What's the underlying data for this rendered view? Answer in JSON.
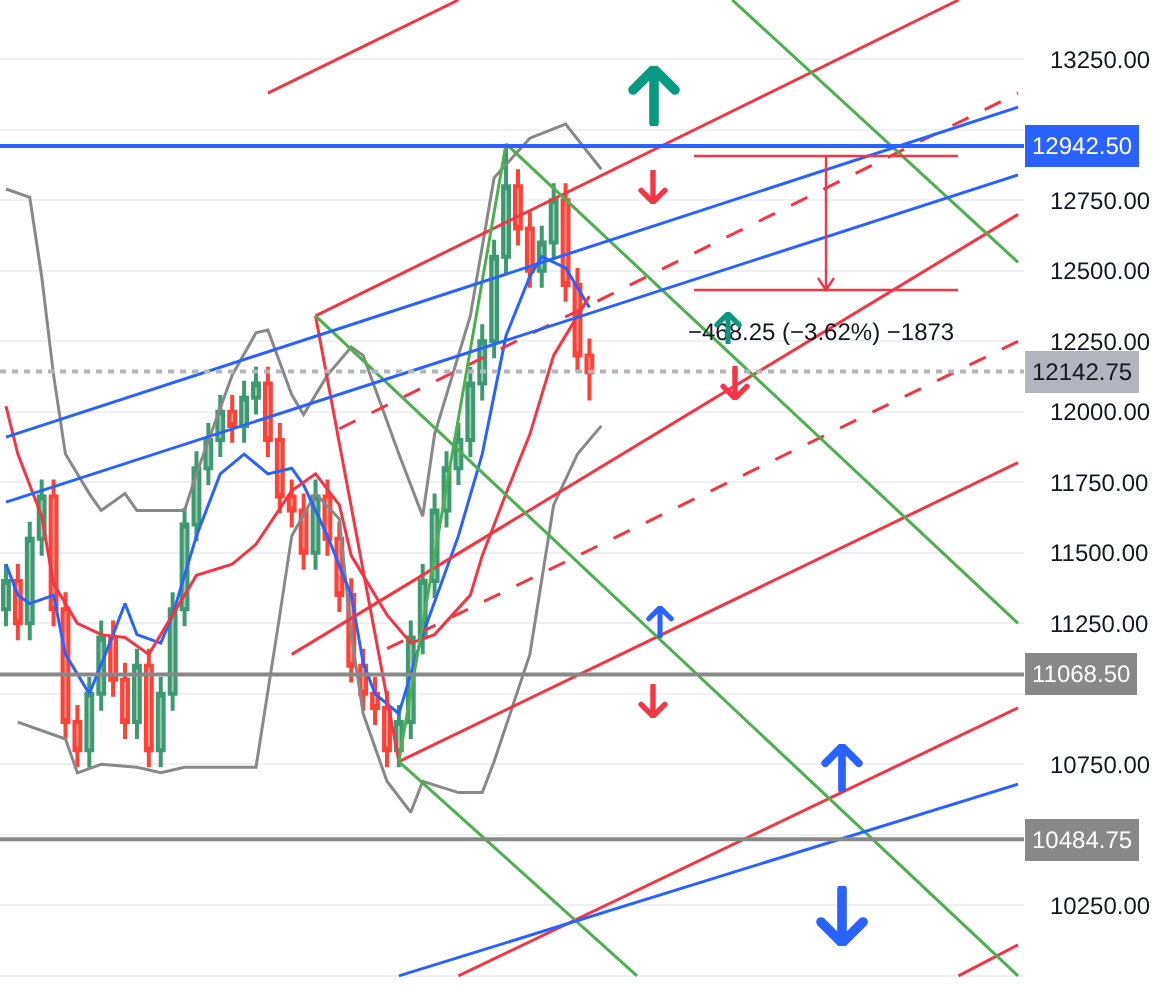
{
  "chart_data": {
    "type": "candlestick",
    "categories": [
      null,
      null,
      null,
      null,
      null,
      null,
      null,
      null,
      null,
      null,
      null,
      null,
      null,
      null,
      null,
      null,
      null,
      null,
      null,
      null,
      null,
      null,
      null,
      null,
      null,
      null,
      null,
      null,
      null,
      null,
      null,
      null,
      null,
      null,
      null,
      null,
      null,
      null,
      null,
      null,
      null,
      null,
      null,
      null,
      null,
      null,
      null,
      null,
      null,
      null,
      null,
      null,
      null,
      null,
      null,
      null,
      null,
      null,
      null,
      null,
      null,
      null,
      null,
      null,
      null,
      null,
      null,
      null,
      null,
      null,
      null,
      null,
      null,
      null,
      null,
      null,
      null,
      null,
      null,
      null,
      null,
      null,
      null,
      null,
      null,
      null
    ],
    "ohlc": [
      [
        11300,
        11460,
        11240,
        11400
      ],
      [
        11400,
        11460,
        11190,
        11250
      ],
      [
        11250,
        11610,
        11190,
        11550
      ],
      [
        11550,
        11760,
        11490,
        11700
      ],
      [
        11700,
        11760,
        11240,
        11300
      ],
      [
        11300,
        11360,
        10840,
        10900
      ],
      [
        10900,
        10960,
        10740,
        10800
      ],
      [
        10800,
        11060,
        10740,
        11000
      ],
      [
        11000,
        11260,
        10940,
        11200
      ],
      [
        11200,
        11260,
        10990,
        11050
      ],
      [
        11050,
        11110,
        10840,
        10900
      ],
      [
        10900,
        11160,
        10840,
        11100
      ],
      [
        11100,
        11160,
        10740,
        10800
      ],
      [
        10800,
        11060,
        10740,
        11000
      ],
      [
        11000,
        11360,
        10940,
        11300
      ],
      [
        11300,
        11660,
        11240,
        11600
      ],
      [
        11600,
        11860,
        11540,
        11800
      ],
      [
        11800,
        11960,
        11740,
        11900
      ],
      [
        11900,
        12060,
        11840,
        12000
      ],
      [
        12000,
        12060,
        11890,
        11950
      ],
      [
        11950,
        12110,
        11890,
        12050
      ],
      [
        12050,
        12160,
        11990,
        12100
      ],
      [
        12100,
        12160,
        11840,
        11900
      ],
      [
        11900,
        11960,
        11640,
        11700
      ],
      [
        11700,
        11760,
        11590,
        11650
      ],
      [
        11650,
        11710,
        11440,
        11500
      ],
      [
        11500,
        11760,
        11440,
        11700
      ],
      [
        11700,
        11760,
        11490,
        11550
      ],
      [
        11550,
        11610,
        11290,
        11350
      ],
      [
        11350,
        11410,
        11040,
        11100
      ],
      [
        11100,
        11160,
        10940,
        11000
      ],
      [
        11000,
        11060,
        10890,
        10950
      ],
      [
        10950,
        11010,
        10740,
        10800
      ],
      [
        10800,
        10960,
        10740,
        10900
      ],
      [
        10900,
        11260,
        10840,
        11200
      ],
      [
        11200,
        11460,
        11140,
        11400
      ],
      [
        11400,
        11710,
        11340,
        11650
      ],
      [
        11650,
        11860,
        11590,
        11800
      ],
      [
        11800,
        11960,
        11740,
        11900
      ],
      [
        11900,
        12160,
        11840,
        12100
      ],
      [
        12100,
        12310,
        12040,
        12250
      ],
      [
        12250,
        12610,
        12190,
        12550
      ],
      [
        12550,
        12940,
        12490,
        12800
      ],
      [
        12800,
        12860,
        12590,
        12650
      ],
      [
        12650,
        12710,
        12440,
        12500
      ],
      [
        12500,
        12660,
        12440,
        12600
      ],
      [
        12600,
        12810,
        12540,
        12750
      ],
      [
        12750,
        12810,
        12390,
        12450
      ],
      [
        12450,
        12510,
        12140,
        12200
      ],
      [
        12200,
        12260,
        12040,
        12140
      ],
      null,
      null,
      null,
      null,
      null,
      null,
      null,
      null,
      null,
      null,
      null,
      null,
      null,
      null,
      null,
      null,
      null,
      null,
      null,
      null,
      null,
      null,
      null,
      null,
      null,
      null,
      null,
      null,
      null,
      null,
      null,
      null,
      null,
      null,
      null,
      null
    ],
    "series": [
      {
        "type": "line",
        "color": "#888888",
        "values": [
          12790,
          null,
          12760,
          12480,
          12130,
          11850,
          null,
          11710,
          11650,
          null,
          11710,
          11650,
          null,
          11650,
          null,
          11650,
          11780,
          null,
          null,
          12130,
          null,
          12280,
          12290,
          null,
          12060,
          11990,
          null,
          12130,
          null,
          12230,
          12200,
          null,
          null,
          11850,
          null,
          11630,
          11920,
          null,
          null,
          12340,
          null,
          12830,
          null,
          null,
          12970,
          null,
          null,
          13020,
          null,
          null,
          12860,
          null,
          null,
          null,
          null,
          null,
          null,
          null,
          null,
          null,
          null,
          null,
          null,
          null,
          null,
          null,
          null,
          null,
          null,
          null,
          null,
          null,
          null,
          null,
          null,
          null,
          null,
          null,
          null,
          null,
          null,
          null,
          null,
          null,
          null,
          null
        ]
      },
      {
        "type": "line",
        "color": "#888888",
        "values": [
          null,
          10900,
          null,
          null,
          null,
          10840,
          10720,
          null,
          10750,
          null,
          null,
          10740,
          null,
          10720,
          null,
          10740,
          null,
          null,
          null,
          10740,
          null,
          10740,
          null,
          11280,
          11560,
          null,
          11710,
          null,
          11620,
          11210,
          10930,
          null,
          10690,
          null,
          10580,
          10690,
          null,
          null,
          10650,
          null,
          10650,
          10760,
          null,
          null,
          11140,
          null,
          11670,
          null,
          11850,
          null,
          11950,
          null,
          null,
          null,
          null,
          null,
          null,
          null,
          null,
          null,
          null,
          null,
          null,
          null,
          null,
          null,
          null,
          null,
          null,
          null,
          null,
          null,
          null,
          null,
          null,
          null,
          null,
          null,
          null,
          null,
          null,
          null,
          null,
          null,
          null,
          null
        ]
      },
      {
        "type": "line",
        "color": "#2962ff",
        "values": [
          11460,
          11350,
          11320,
          null,
          11350,
          11140,
          null,
          11000,
          null,
          11210,
          11320,
          11210,
          null,
          11180,
          11280,
          null,
          11560,
          null,
          11780,
          null,
          11850,
          null,
          11780,
          null,
          11800,
          11740,
          null,
          11560,
          null,
          11350,
          11110,
          11000,
          null,
          10930,
          null,
          11210,
          null,
          null,
          11560,
          null,
          11850,
          null,
          12270,
          null,
          12480,
          12550,
          null,
          12510,
          null,
          12370,
          null,
          null,
          null,
          null,
          null,
          null,
          null,
          null,
          null,
          null,
          null,
          null,
          null,
          null,
          null,
          null,
          null,
          null,
          null,
          null,
          null,
          null,
          null,
          null,
          null,
          null,
          null,
          null,
          null,
          null,
          null,
          null,
          null,
          null,
          null,
          null
        ]
      },
      {
        "type": "line",
        "color": "#f23645",
        "values": [
          12020,
          11850,
          null,
          11630,
          11390,
          null,
          11250,
          null,
          11210,
          null,
          11200,
          null,
          11140,
          null,
          11280,
          null,
          11420,
          null,
          null,
          11460,
          null,
          11530,
          null,
          null,
          11720,
          null,
          11780,
          null,
          11670,
          11490,
          null,
          null,
          11280,
          null,
          11180,
          null,
          11210,
          null,
          null,
          11350,
          11490,
          null,
          11710,
          null,
          11920,
          null,
          12200,
          null,
          null,
          12410,
          null,
          null,
          null,
          null,
          null,
          null,
          null,
          null,
          null,
          null,
          null,
          null,
          null,
          null,
          null,
          null,
          null,
          null,
          null,
          null,
          null,
          null,
          null,
          null,
          null,
          null,
          null,
          null,
          null,
          null,
          null,
          null,
          null,
          null,
          null,
          null
        ]
      },
      {
        "type": "line",
        "color": "#f23645",
        "values": [
          null,
          null,
          null,
          null,
          null,
          null,
          null,
          null,
          null,
          null,
          null,
          null,
          null,
          null,
          null,
          null,
          null,
          null,
          null,
          null,
          null,
          null,
          13130,
          null,
          null,
          null,
          null,
          null,
          null,
          null,
          null,
          null,
          null,
          null,
          null,
          null,
          null,
          null,
          13460,
          null,
          null,
          null,
          null,
          null,
          null,
          null,
          null,
          null,
          null,
          null,
          null,
          null,
          null,
          null,
          null,
          null,
          null,
          null,
          null,
          null,
          null,
          null,
          null,
          null,
          null,
          null,
          null,
          null,
          null,
          null,
          null,
          null,
          null,
          null,
          null,
          null,
          null,
          null,
          null,
          null,
          null,
          null,
          null,
          null,
          null,
          null
        ]
      },
      {
        "type": "line",
        "color": "#f23645",
        "values": [
          null,
          null,
          null,
          null,
          null,
          null,
          null,
          null,
          null,
          null,
          null,
          null,
          null,
          null,
          null,
          null,
          null,
          null,
          null,
          null,
          null,
          null,
          null,
          null,
          null,
          null,
          12340,
          null,
          null,
          null,
          null,
          null,
          null,
          null,
          null,
          null,
          null,
          null,
          null,
          null,
          null,
          null,
          null,
          null,
          null,
          null,
          null,
          null,
          null,
          null,
          null,
          null,
          null,
          null,
          null,
          null,
          null,
          null,
          null,
          null,
          null,
          null,
          null,
          null,
          null,
          null,
          null,
          null,
          null,
          null,
          null,
          null,
          null,
          null,
          null,
          null,
          null,
          null,
          null,
          null,
          13460,
          null,
          null,
          null,
          null,
          null
        ]
      },
      {
        "type": "line",
        "color": "#f23645",
        "values": [
          null,
          null,
          null,
          null,
          null,
          null,
          null,
          null,
          null,
          null,
          null,
          null,
          null,
          null,
          null,
          null,
          null,
          null,
          null,
          null,
          null,
          null,
          null,
          null,
          11140,
          null,
          null,
          null,
          null,
          null,
          null,
          null,
          null,
          null,
          null,
          null,
          null,
          null,
          null,
          null,
          null,
          null,
          null,
          null,
          null,
          null,
          null,
          null,
          null,
          null,
          null,
          null,
          null,
          null,
          null,
          null,
          null,
          null,
          null,
          null,
          null,
          null,
          null,
          null,
          null,
          null,
          null,
          null,
          null,
          null,
          null,
          null,
          null,
          null,
          null,
          null,
          null,
          null,
          null,
          null,
          null,
          null,
          null,
          null,
          null,
          12700
        ]
      },
      {
        "type": "line",
        "color": "#f23645",
        "line_style": "dashed",
        "values": [
          null,
          null,
          null,
          null,
          null,
          null,
          null,
          null,
          null,
          null,
          null,
          null,
          null,
          null,
          null,
          null,
          null,
          null,
          null,
          null,
          null,
          null,
          null,
          null,
          null,
          null,
          null,
          null,
          11940,
          null,
          null,
          null,
          null,
          null,
          null,
          null,
          null,
          null,
          null,
          null,
          null,
          null,
          null,
          null,
          null,
          null,
          null,
          null,
          null,
          null,
          null,
          null,
          null,
          null,
          null,
          null,
          null,
          null,
          null,
          null,
          null,
          null,
          null,
          null,
          null,
          null,
          null,
          null,
          null,
          null,
          null,
          null,
          null,
          null,
          null,
          null,
          null,
          null,
          null,
          null,
          null,
          null,
          null,
          null,
          null,
          13130
        ]
      },
      {
        "type": "line",
        "color": "#f23645",
        "line_style": "dashed",
        "values": [
          null,
          null,
          null,
          null,
          null,
          null,
          null,
          null,
          null,
          null,
          null,
          null,
          null,
          null,
          null,
          null,
          null,
          null,
          null,
          null,
          null,
          null,
          null,
          null,
          null,
          null,
          null,
          null,
          null,
          null,
          null,
          null,
          11160,
          null,
          null,
          null,
          null,
          null,
          null,
          null,
          null,
          null,
          null,
          null,
          null,
          null,
          null,
          null,
          null,
          null,
          null,
          null,
          null,
          null,
          null,
          null,
          null,
          null,
          null,
          null,
          null,
          null,
          null,
          null,
          null,
          null,
          null,
          null,
          null,
          null,
          null,
          null,
          null,
          null,
          null,
          null,
          null,
          null,
          null,
          null,
          null,
          null,
          null,
          null,
          null,
          12250
        ]
      },
      {
        "type": "line",
        "color": "#f23645",
        "values": [
          null,
          null,
          null,
          null,
          null,
          null,
          null,
          null,
          null,
          null,
          null,
          null,
          null,
          null,
          null,
          null,
          null,
          null,
          null,
          null,
          null,
          null,
          null,
          null,
          null,
          null,
          null,
          null,
          null,
          null,
          null,
          null,
          null,
          10760,
          null,
          null,
          null,
          null,
          null,
          null,
          null,
          null,
          null,
          null,
          null,
          null,
          null,
          null,
          null,
          null,
          null,
          null,
          null,
          null,
          null,
          null,
          null,
          null,
          null,
          null,
          null,
          null,
          null,
          null,
          null,
          null,
          null,
          null,
          null,
          null,
          null,
          null,
          null,
          null,
          null,
          null,
          null,
          null,
          null,
          null,
          null,
          null,
          null,
          null,
          null,
          11820
        ]
      },
      {
        "type": "line",
        "color": "#f23645",
        "values": [
          null,
          null,
          null,
          null,
          null,
          null,
          null,
          null,
          null,
          null,
          null,
          null,
          null,
          null,
          null,
          null,
          null,
          null,
          null,
          null,
          null,
          null,
          null,
          null,
          null,
          null,
          null,
          null,
          null,
          null,
          null,
          null,
          null,
          null,
          null,
          null,
          null,
          null,
          10000,
          null,
          null,
          null,
          null,
          null,
          null,
          null,
          null,
          null,
          null,
          null,
          null,
          null,
          null,
          null,
          null,
          null,
          null,
          null,
          null,
          null,
          null,
          null,
          null,
          null,
          null,
          null,
          null,
          null,
          null,
          null,
          null,
          null,
          null,
          null,
          null,
          null,
          null,
          null,
          null,
          null,
          null,
          null,
          null,
          null,
          null,
          10950
        ]
      },
      {
        "type": "line",
        "color": "#f23645",
        "values": [
          null,
          null,
          null,
          null,
          null,
          null,
          null,
          null,
          null,
          null,
          null,
          null,
          null,
          null,
          null,
          null,
          null,
          null,
          null,
          null,
          null,
          null,
          null,
          null,
          null,
          null,
          null,
          null,
          null,
          null,
          null,
          null,
          null,
          null,
          null,
          null,
          null,
          null,
          null,
          null,
          null,
          null,
          null,
          null,
          null,
          null,
          null,
          null,
          null,
          null,
          null,
          null,
          null,
          null,
          null,
          null,
          null,
          null,
          null,
          null,
          null,
          null,
          null,
          null,
          null,
          null,
          null,
          null,
          null,
          null,
          null,
          null,
          null,
          null,
          null,
          null,
          null,
          null,
          null,
          null,
          10000,
          null,
          null,
          null,
          null,
          10110
        ]
      },
      {
        "type": "line",
        "color": "#f23645",
        "values": [
          null,
          null,
          null,
          null,
          null,
          null,
          null,
          null,
          null,
          null,
          null,
          null,
          null,
          null,
          null,
          null,
          null,
          null,
          null,
          null,
          null,
          null,
          null,
          null,
          null,
          null,
          12340,
          null,
          null,
          null,
          null,
          null,
          null,
          10760,
          null,
          null,
          null,
          null,
          null,
          null,
          null,
          null,
          null,
          null,
          null,
          null,
          null,
          null,
          null,
          null,
          null,
          null,
          null,
          null,
          null,
          null,
          null,
          null,
          null,
          null,
          null,
          null,
          null,
          null,
          null,
          null,
          null,
          null,
          null,
          null,
          null,
          null,
          null,
          null,
          null,
          null,
          null,
          null,
          null,
          null,
          null,
          null,
          null,
          null,
          null,
          null
        ]
      },
      {
        "type": "line",
        "color": "#4caf50",
        "values": [
          null,
          null,
          null,
          null,
          null,
          null,
          null,
          null,
          null,
          null,
          null,
          null,
          null,
          null,
          null,
          null,
          null,
          null,
          null,
          null,
          null,
          null,
          null,
          null,
          null,
          null,
          null,
          null,
          null,
          null,
          null,
          null,
          null,
          10760,
          null,
          null,
          null,
          null,
          null,
          null,
          null,
          null,
          12950,
          null,
          null,
          null,
          null,
          null,
          null,
          null,
          null,
          null,
          null,
          null,
          null,
          null,
          null,
          null,
          null,
          null,
          null,
          null,
          null,
          null,
          null,
          null,
          null,
          null,
          null,
          null,
          null,
          null,
          null,
          null,
          null,
          null,
          null,
          null,
          null,
          null,
          null,
          null,
          null,
          null,
          null,
          null
        ]
      },
      {
        "type": "line",
        "color": "#4caf50",
        "values": [
          null,
          null,
          null,
          null,
          null,
          null,
          null,
          null,
          null,
          null,
          null,
          null,
          null,
          null,
          null,
          null,
          null,
          null,
          null,
          null,
          null,
          null,
          null,
          null,
          null,
          null,
          null,
          null,
          null,
          null,
          null,
          null,
          null,
          null,
          null,
          null,
          null,
          null,
          null,
          null,
          null,
          null,
          null,
          null,
          null,
          null,
          null,
          null,
          null,
          null,
          null,
          null,
          null,
          null,
          null,
          null,
          null,
          null,
          null,
          null,
          null,
          13460,
          null,
          null,
          null,
          null,
          null,
          null,
          null,
          null,
          null,
          null,
          null,
          null,
          null,
          null,
          null,
          null,
          null,
          null,
          null,
          null,
          null,
          null,
          null,
          12530
        ]
      },
      {
        "type": "line",
        "color": "#4caf50",
        "values": [
          null,
          null,
          null,
          null,
          null,
          null,
          null,
          null,
          null,
          null,
          null,
          null,
          null,
          null,
          null,
          null,
          null,
          null,
          null,
          null,
          null,
          null,
          null,
          null,
          null,
          null,
          null,
          null,
          null,
          null,
          null,
          null,
          null,
          null,
          null,
          null,
          null,
          null,
          null,
          null,
          null,
          null,
          12950,
          null,
          null,
          null,
          null,
          null,
          null,
          null,
          null,
          null,
          null,
          null,
          null,
          null,
          null,
          null,
          null,
          null,
          null,
          null,
          null,
          null,
          null,
          null,
          null,
          null,
          null,
          null,
          null,
          null,
          null,
          null,
          null,
          null,
          null,
          null,
          null,
          null,
          null,
          null,
          null,
          null,
          null,
          11250
        ]
      },
      {
        "type": "line",
        "color": "#4caf50",
        "values": [
          null,
          null,
          null,
          null,
          null,
          null,
          null,
          null,
          null,
          null,
          null,
          null,
          null,
          null,
          null,
          null,
          null,
          null,
          null,
          null,
          null,
          null,
          null,
          null,
          null,
          null,
          12340,
          null,
          null,
          null,
          null,
          null,
          null,
          null,
          null,
          null,
          null,
          null,
          null,
          null,
          null,
          null,
          null,
          null,
          null,
          null,
          null,
          null,
          null,
          null,
          null,
          null,
          null,
          null,
          null,
          null,
          null,
          null,
          null,
          null,
          null,
          null,
          null,
          null,
          null,
          null,
          null,
          null,
          null,
          null,
          null,
          null,
          null,
          null,
          null,
          null,
          null,
          null,
          null,
          null,
          null,
          null,
          null,
          null,
          null,
          10000
        ]
      },
      {
        "type": "line",
        "color": "#4caf50",
        "values": [
          null,
          null,
          null,
          null,
          null,
          null,
          null,
          null,
          null,
          null,
          null,
          null,
          null,
          null,
          null,
          null,
          null,
          null,
          null,
          null,
          null,
          null,
          null,
          null,
          null,
          null,
          null,
          null,
          null,
          null,
          null,
          null,
          null,
          10760,
          null,
          null,
          null,
          null,
          null,
          null,
          null,
          null,
          null,
          null,
          null,
          null,
          null,
          null,
          null,
          null,
          null,
          null,
          null,
          10000,
          null,
          null,
          null,
          null,
          null,
          null,
          null,
          null,
          null,
          null,
          null,
          null,
          null,
          null,
          null,
          null,
          null,
          null,
          null,
          null,
          null,
          null,
          null,
          null,
          null,
          null,
          null,
          null,
          null,
          null,
          null,
          null
        ]
      },
      {
        "type": "line",
        "color": "#2962ff",
        "values": [
          11910,
          null,
          null,
          null,
          null,
          null,
          null,
          null,
          null,
          null,
          null,
          null,
          null,
          null,
          null,
          null,
          null,
          null,
          null,
          null,
          null,
          null,
          null,
          null,
          null,
          null,
          null,
          null,
          null,
          null,
          null,
          null,
          null,
          null,
          null,
          null,
          null,
          null,
          null,
          null,
          null,
          null,
          null,
          null,
          null,
          null,
          null,
          null,
          null,
          null,
          null,
          null,
          null,
          null,
          null,
          null,
          null,
          null,
          null,
          null,
          null,
          null,
          null,
          null,
          null,
          null,
          null,
          null,
          null,
          null,
          null,
          null,
          null,
          null,
          null,
          null,
          null,
          null,
          null,
          null,
          null,
          null,
          null,
          null,
          null,
          13080
        ]
      },
      {
        "type": "line",
        "color": "#2962ff",
        "values": [
          11680,
          null,
          null,
          null,
          null,
          null,
          null,
          null,
          null,
          null,
          null,
          null,
          null,
          null,
          null,
          null,
          null,
          null,
          null,
          null,
          null,
          null,
          null,
          null,
          null,
          null,
          null,
          null,
          null,
          null,
          null,
          null,
          null,
          null,
          null,
          null,
          null,
          null,
          null,
          null,
          null,
          null,
          null,
          null,
          null,
          null,
          null,
          null,
          null,
          null,
          null,
          null,
          null,
          null,
          null,
          null,
          null,
          null,
          null,
          null,
          null,
          null,
          null,
          null,
          null,
          null,
          null,
          null,
          null,
          null,
          null,
          null,
          null,
          null,
          null,
          null,
          null,
          null,
          null,
          null,
          null,
          null,
          null,
          null,
          null,
          12840
        ]
      },
      {
        "type": "line",
        "color": "#2962ff",
        "values": [
          null,
          null,
          null,
          null,
          null,
          null,
          null,
          null,
          null,
          null,
          null,
          null,
          null,
          null,
          null,
          null,
          null,
          null,
          null,
          null,
          null,
          null,
          null,
          null,
          null,
          null,
          null,
          null,
          null,
          null,
          null,
          null,
          null,
          10000,
          null,
          null,
          null,
          null,
          null,
          null,
          null,
          null,
          null,
          null,
          null,
          null,
          null,
          null,
          null,
          null,
          null,
          null,
          null,
          null,
          null,
          null,
          null,
          null,
          null,
          null,
          null,
          null,
          null,
          null,
          null,
          null,
          null,
          null,
          null,
          null,
          null,
          null,
          null,
          null,
          null,
          null,
          null,
          null,
          null,
          null,
          null,
          null,
          null,
          null,
          null,
          10680
        ]
      }
    ],
    "ylim": [
      9950,
      13460
    ],
    "yticks": [
      {
        "value": 10000,
        "label": null
      },
      {
        "value": 10250,
        "label": "10250.00"
      },
      {
        "value": 10500,
        "label": null
      },
      {
        "value": 10750,
        "label": "10750.00"
      },
      {
        "value": 11000,
        "label": null
      },
      {
        "value": 11250,
        "label": "11250.00"
      },
      {
        "value": 11500,
        "label": "11500.00"
      },
      {
        "value": 11750,
        "label": "11750.00"
      },
      {
        "value": 12000,
        "label": "12000.00"
      },
      {
        "value": 12250,
        "label": "12250.00"
      },
      {
        "value": 12500,
        "label": "12500.00"
      },
      {
        "value": 12750,
        "label": "12750.00"
      },
      {
        "value": 13000,
        "label": null
      },
      {
        "value": 13250,
        "label": "13250.00"
      }
    ],
    "tick_labels": "y",
    "grid": "y",
    "ref_lines": [
      {
        "axis": "y",
        "value": 12942.5,
        "label": "12942.50",
        "color": "#2962ff"
      },
      {
        "axis": "y",
        "value": 12142.75,
        "label": "12142.75",
        "color": "#b2b5be",
        "line_style": "dotted"
      },
      {
        "axis": "y",
        "value": 11068.5,
        "label": "11068.50",
        "color": "#888888"
      },
      {
        "axis": "y",
        "value": 10484.75,
        "label": "10484.75",
        "color": "#888888"
      }
    ],
    "annotations": [
      "−468.25 (−3.62%) −1873"
    ]
  }
}
